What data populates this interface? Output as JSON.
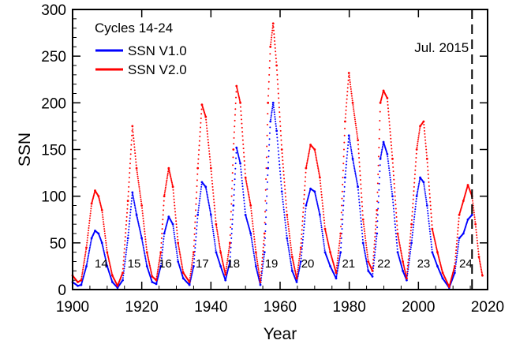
{
  "chart_data": {
    "type": "scatter",
    "xlabel": "Year",
    "ylabel": "SSN",
    "xlim": [
      1900,
      2020
    ],
    "ylim": [
      0,
      300
    ],
    "x_ticks": [
      1900,
      1920,
      1940,
      1960,
      1980,
      2000,
      2020
    ],
    "y_ticks": [
      0,
      50,
      100,
      150,
      200,
      250,
      300
    ],
    "legend": {
      "title": "Cycles 14-24",
      "position": "top-left",
      "entries": [
        {
          "label": "SSN V1.0",
          "color": "#0000ff"
        },
        {
          "label": "SSN V2.0",
          "color": "#ff0000"
        }
      ]
    },
    "annotation": {
      "text": "Jul. 2015",
      "x": 2015.5,
      "line_style": "dashed"
    },
    "cycle_labels": [
      {
        "label": "14",
        "x": 1908.3
      },
      {
        "label": "15",
        "x": 1917.8
      },
      {
        "label": "16",
        "x": 1926.8
      },
      {
        "label": "17",
        "x": 1937.5
      },
      {
        "label": "18",
        "x": 1946.5
      },
      {
        "label": "19",
        "x": 1957.5
      },
      {
        "label": "20",
        "x": 1968.0
      },
      {
        "label": "21",
        "x": 1979.8
      },
      {
        "label": "22",
        "x": 1990.0
      },
      {
        "label": "23",
        "x": 2001.5
      },
      {
        "label": "24",
        "x": 2013.7
      }
    ],
    "series": [
      {
        "name": "SSN V1.0",
        "color": "#0000ff",
        "x": [
          1900.0,
          1901.5,
          1902.5,
          1904.0,
          1905.5,
          1906.5,
          1907.5,
          1908.5,
          1910.0,
          1911.5,
          1913.0,
          1914.5,
          1916.0,
          1917.3,
          1918.5,
          1920.0,
          1921.5,
          1923.0,
          1924.2,
          1925.5,
          1926.5,
          1927.8,
          1929.0,
          1930.5,
          1932.0,
          1933.8,
          1935.0,
          1936.2,
          1937.4,
          1938.5,
          1940.0,
          1941.5,
          1942.8,
          1944.2,
          1945.5,
          1946.5,
          1947.4,
          1948.5,
          1950.0,
          1951.5,
          1953.0,
          1954.3,
          1955.5,
          1956.5,
          1957.2,
          1958.0,
          1959.0,
          1960.5,
          1962.0,
          1963.5,
          1964.8,
          1966.0,
          1967.5,
          1968.8,
          1970.0,
          1971.5,
          1973.0,
          1974.5,
          1976.2,
          1977.5,
          1978.8,
          1979.9,
          1981.0,
          1982.5,
          1984.0,
          1985.5,
          1986.7,
          1988.0,
          1989.0,
          1989.9,
          1991.0,
          1992.5,
          1994.0,
          1995.5,
          1996.6,
          1998.0,
          1999.5,
          2000.5,
          2001.5,
          2002.5,
          2004.0,
          2005.5,
          2007.0,
          2008.9,
          2010.5,
          2011.8,
          2013.0,
          2014.3,
          2015.5
        ],
        "values": [
          8,
          4,
          5,
          25,
          55,
          63,
          60,
          50,
          25,
          8,
          2,
          10,
          55,
          104,
          80,
          55,
          25,
          8,
          6,
          25,
          60,
          78,
          70,
          30,
          12,
          5,
          25,
          80,
          115,
          110,
          80,
          40,
          25,
          10,
          30,
          90,
          152,
          135,
          80,
          60,
          25,
          5,
          40,
          130,
          180,
          200,
          170,
          105,
          55,
          20,
          8,
          30,
          90,
          108,
          105,
          80,
          40,
          25,
          12,
          40,
          120,
          165,
          140,
          110,
          50,
          20,
          14,
          60,
          140,
          158,
          145,
          100,
          40,
          20,
          10,
          50,
          100,
          120,
          115,
          90,
          40,
          25,
          12,
          2,
          18,
          55,
          60,
          75,
          80
        ]
      },
      {
        "name": "SSN V2.0",
        "color": "#ff0000",
        "x": [
          1900.0,
          1901.5,
          1902.5,
          1904.0,
          1905.5,
          1906.5,
          1907.5,
          1908.5,
          1910.0,
          1911.5,
          1913.0,
          1914.5,
          1916.0,
          1917.3,
          1918.5,
          1920.0,
          1921.5,
          1923.0,
          1924.2,
          1925.5,
          1926.5,
          1927.8,
          1929.0,
          1930.5,
          1932.0,
          1933.8,
          1935.0,
          1936.2,
          1937.4,
          1938.5,
          1940.0,
          1941.5,
          1942.8,
          1944.2,
          1945.5,
          1946.5,
          1947.4,
          1948.5,
          1950.0,
          1951.5,
          1953.0,
          1954.3,
          1955.5,
          1956.5,
          1957.2,
          1958.0,
          1959.0,
          1960.5,
          1962.0,
          1963.5,
          1964.8,
          1966.0,
          1967.5,
          1968.8,
          1970.0,
          1971.5,
          1973.0,
          1974.5,
          1976.2,
          1977.5,
          1978.8,
          1979.9,
          1981.0,
          1982.5,
          1984.0,
          1985.5,
          1986.7,
          1988.0,
          1989.0,
          1989.9,
          1991.0,
          1992.5,
          1994.0,
          1995.5,
          1996.6,
          1998.0,
          1999.5,
          2000.5,
          2001.5,
          2002.5,
          2004.0,
          2005.5,
          2007.0,
          2008.9,
          2010.5,
          2011.8,
          2013.0,
          2014.3,
          2015.5,
          2016.5,
          2017.5,
          2018.5
        ],
        "values": [
          15,
          8,
          10,
          45,
          92,
          106,
          100,
          85,
          40,
          15,
          4,
          18,
          95,
          175,
          130,
          90,
          40,
          14,
          10,
          40,
          100,
          130,
          110,
          50,
          18,
          8,
          40,
          130,
          198,
          185,
          130,
          70,
          40,
          16,
          50,
          150,
          218,
          200,
          120,
          90,
          40,
          8,
          60,
          200,
          260,
          285,
          240,
          150,
          80,
          35,
          12,
          45,
          130,
          155,
          150,
          120,
          65,
          40,
          18,
          60,
          180,
          232,
          200,
          160,
          75,
          30,
          20,
          85,
          200,
          213,
          205,
          140,
          60,
          30,
          12,
          70,
          150,
          175,
          180,
          140,
          65,
          40,
          18,
          3,
          25,
          80,
          95,
          112,
          100,
          70,
          35,
          15
        ]
      }
    ]
  }
}
